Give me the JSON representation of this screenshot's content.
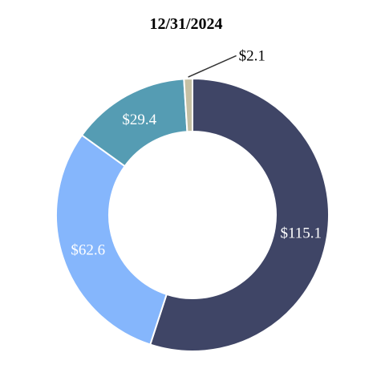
{
  "chart_data": {
    "type": "pie",
    "donut": true,
    "title": "12/31/2024",
    "slices": [
      {
        "value": 115.1,
        "label": "$115.1",
        "color": "#3f4566",
        "label_position": "inside"
      },
      {
        "value": 62.6,
        "label": "$62.6",
        "color": "#85b6fc",
        "label_position": "inside"
      },
      {
        "value": 29.4,
        "label": "$29.4",
        "color": "#559cb3",
        "label_position": "inside"
      },
      {
        "value": 2.1,
        "label": "$2.1",
        "color": "#c5c0a4",
        "label_position": "outside"
      }
    ],
    "start": "12 o'clock",
    "direction": "clockwise",
    "legend": "none"
  }
}
